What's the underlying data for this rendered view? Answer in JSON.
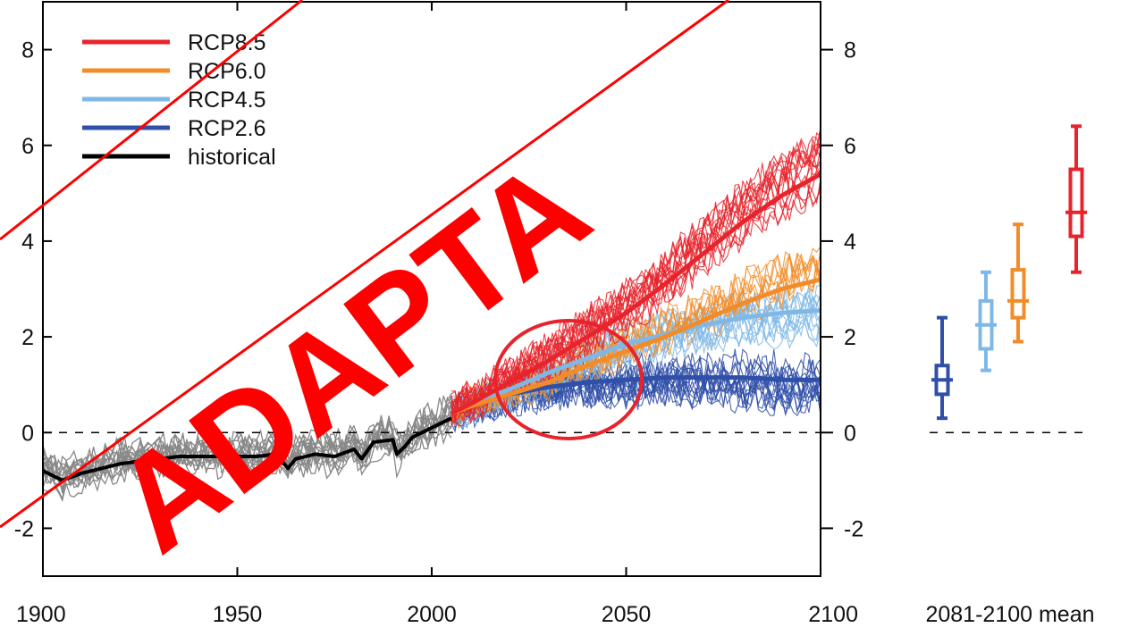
{
  "chart_data": {
    "type": "line",
    "title": "",
    "xlabel": "",
    "ylabel": "",
    "xlim": [
      1900,
      2100
    ],
    "ylim": [
      -3,
      9
    ],
    "x_ticks": [
      1900,
      1950,
      2000,
      2050,
      2100
    ],
    "y_ticks": [
      -2,
      0,
      2,
      4,
      6,
      8
    ],
    "grid": false,
    "zero_reference_line": "dashed",
    "legend_placement": "top-left",
    "colors": {
      "RCP8.5": "#e8232b",
      "RCP6.0": "#f28c28",
      "RCP4.5": "#7fb8e6",
      "RCP2.6": "#2f4fa8",
      "historical": "#000000",
      "ensemble_historical": "#888888"
    },
    "series": [
      {
        "name": "historical",
        "x": [
          1900,
          1905,
          1910,
          1915,
          1920,
          1925,
          1930,
          1935,
          1940,
          1945,
          1950,
          1955,
          1960,
          1963,
          1965,
          1970,
          1975,
          1980,
          1982,
          1985,
          1990,
          1991,
          1993,
          1995,
          2000,
          2005
        ],
        "y": [
          -0.8,
          -1.0,
          -0.85,
          -0.75,
          -0.65,
          -0.6,
          -0.55,
          -0.5,
          -0.5,
          -0.5,
          -0.5,
          -0.5,
          -0.45,
          -0.75,
          -0.55,
          -0.45,
          -0.5,
          -0.35,
          -0.55,
          -0.2,
          -0.15,
          -0.45,
          -0.3,
          -0.1,
          0.1,
          0.3
        ]
      },
      {
        "name": "RCP2.6",
        "x": [
          2005,
          2010,
          2020,
          2030,
          2040,
          2050,
          2060,
          2070,
          2080,
          2090,
          2100
        ],
        "y": [
          0.4,
          0.55,
          0.8,
          0.95,
          1.05,
          1.1,
          1.15,
          1.15,
          1.15,
          1.1,
          1.1
        ]
      },
      {
        "name": "RCP4.5",
        "x": [
          2005,
          2010,
          2020,
          2030,
          2040,
          2050,
          2060,
          2070,
          2080,
          2090,
          2100
        ],
        "y": [
          0.4,
          0.6,
          0.9,
          1.25,
          1.55,
          1.85,
          2.05,
          2.25,
          2.4,
          2.5,
          2.55
        ]
      },
      {
        "name": "RCP6.0",
        "x": [
          2005,
          2010,
          2020,
          2030,
          2040,
          2050,
          2060,
          2070,
          2080,
          2090,
          2100
        ],
        "y": [
          0.4,
          0.55,
          0.8,
          1.05,
          1.4,
          1.7,
          2.0,
          2.35,
          2.7,
          3.0,
          3.2
        ]
      },
      {
        "name": "RCP8.5",
        "x": [
          2005,
          2010,
          2020,
          2030,
          2040,
          2050,
          2060,
          2070,
          2080,
          2090,
          2100
        ],
        "y": [
          0.4,
          0.6,
          1.05,
          1.5,
          2.0,
          2.5,
          3.1,
          3.75,
          4.4,
          4.95,
          5.4
        ]
      }
    ],
    "boxplots_2081_2100_mean": [
      {
        "name": "RCP2.6",
        "min": 0.3,
        "q1": 0.8,
        "median": 1.1,
        "q3": 1.4,
        "max": 2.4
      },
      {
        "name": "RCP4.5",
        "min": 1.3,
        "q1": 1.75,
        "median": 2.25,
        "q3": 2.75,
        "max": 3.35
      },
      {
        "name": "RCP6.0",
        "min": 1.9,
        "q1": 2.4,
        "median": 2.75,
        "q3": 3.4,
        "max": 4.35
      },
      {
        "name": "RCP8.5",
        "min": 3.35,
        "q1": 4.1,
        "median": 4.6,
        "q3": 5.5,
        "max": 6.4
      }
    ],
    "boxplot_caption": "2081-2100 mean",
    "annotations": [
      "red circle around approximately 2020-2050 where scenarios begin to diverge"
    ]
  },
  "legend": {
    "items": [
      {
        "label": "RCP8.5",
        "color": "#e8232b"
      },
      {
        "label": "RCP6.0",
        "color": "#f28c28"
      },
      {
        "label": "RCP4.5",
        "color": "#7fb8e6"
      },
      {
        "label": "RCP2.6",
        "color": "#2f4fa8"
      },
      {
        "label": "historical",
        "color": "#000000"
      }
    ]
  },
  "watermark": {
    "text": "ADAPTA",
    "color": "#ff0000"
  }
}
